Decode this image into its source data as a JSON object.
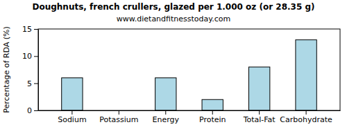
{
  "chart_data": {
    "type": "bar",
    "title": "Doughnuts, french crullers, glazed per 1.000 oz (or 28.35 g)",
    "subtitle": "www.dietandfitnesstoday.com",
    "y_label": "Percentage of RDA (%)",
    "categories": [
      "Sodium",
      "Potassium",
      "Energy",
      "Protein",
      "Total-Fat",
      "Carbohydrate"
    ],
    "values": [
      6,
      0,
      6,
      2,
      8,
      13
    ],
    "color": "#add8e6",
    "ylim": [
      0,
      15
    ],
    "yticks": [
      0,
      5,
      10,
      15
    ],
    "grid": false
  }
}
